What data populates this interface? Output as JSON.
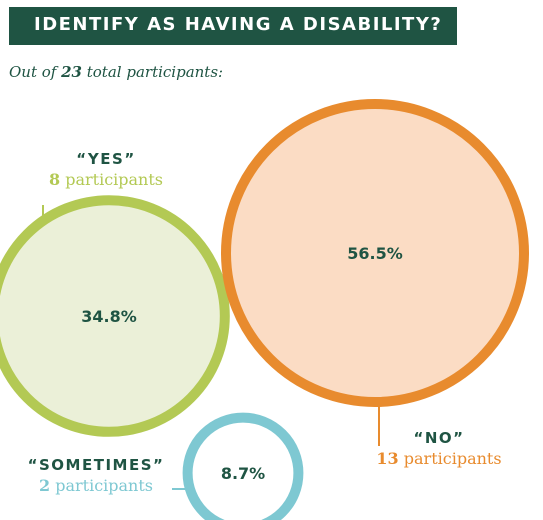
{
  "title": "IDENTIFY AS HAVING A DISABILITY?",
  "subtitle": {
    "prefix": "Out of ",
    "total": "23",
    "suffix": " total participants:"
  },
  "count_suffix": " participants",
  "colors": {
    "title_bg": "#1f5443",
    "text_dark": "#1f5443",
    "yes": "#b3c954",
    "yes_fill": "#ebf0d8",
    "no": "#e88b2e",
    "no_fill": "#fbdcc4",
    "sometimes": "#7ec8d2",
    "sometimes_fill": "#ffffff"
  },
  "chart_data": {
    "type": "bubble",
    "title": "IDENTIFY AS HAVING A DISABILITY?",
    "total": 23,
    "series": [
      {
        "name": "“YES”",
        "count": 8,
        "percent": "34.8%",
        "value": 34.8
      },
      {
        "name": "“NO”",
        "count": 13,
        "percent": "56.5%",
        "value": 56.5
      },
      {
        "name": "“SOMETIMES”",
        "count": 2,
        "percent": "8.7%",
        "value": 8.7
      }
    ]
  }
}
